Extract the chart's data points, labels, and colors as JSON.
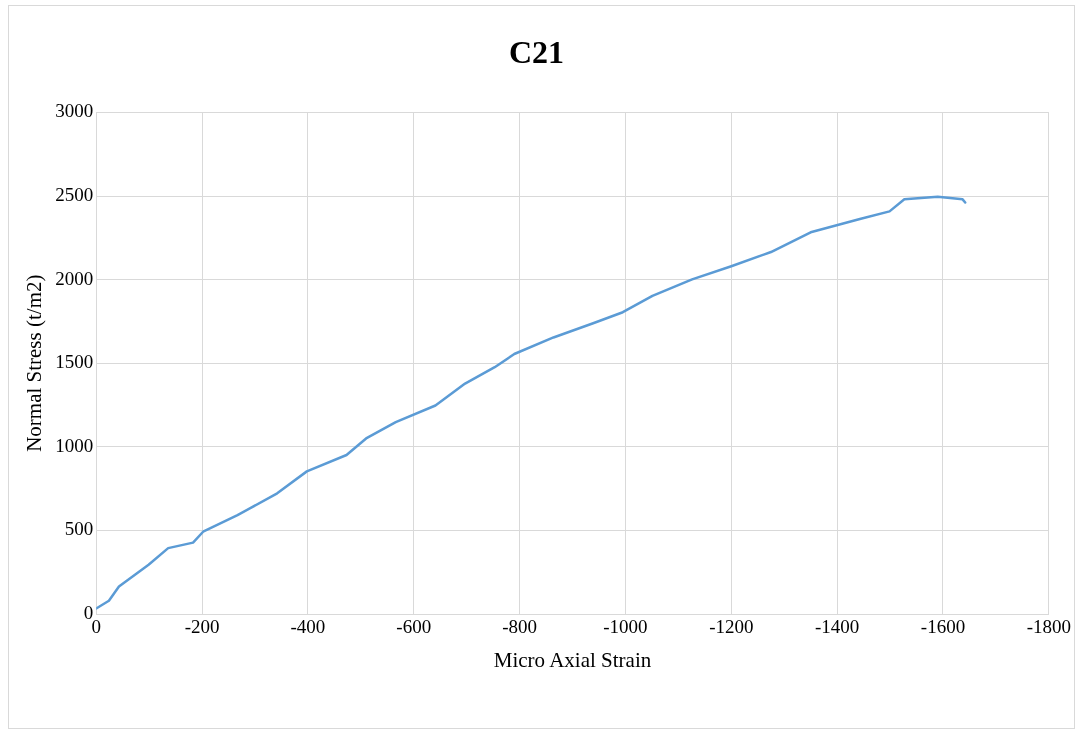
{
  "chart_data": {
    "type": "line",
    "title": "C21",
    "xlabel": "Micro Axial Strain",
    "ylabel": "Normal Stress (t/m2)",
    "xlim": [
      0,
      -1800
    ],
    "xticks": [
      0,
      -200,
      -400,
      -600,
      -800,
      -1000,
      -1200,
      -1400,
      -1600,
      -1800
    ],
    "ylim": [
      0,
      3000
    ],
    "yticks": [
      0,
      500,
      1000,
      1500,
      2000,
      2500,
      3000
    ],
    "grid": true,
    "legend": false,
    "marker": "none",
    "line_style": "solid",
    "series": [
      {
        "color": "#5b9bd5",
        "x": [
          0,
          -24,
          -43,
          -99,
          -136,
          -183,
          -202,
          -267,
          -342,
          -398,
          -473,
          -510,
          -566,
          -641,
          -697,
          -753,
          -790,
          -864,
          -939,
          -995,
          -1051,
          -1126,
          -1200,
          -1275,
          -1350,
          -1443,
          -1499,
          -1527,
          -1590,
          -1637,
          -1642
        ],
        "values": [
          33,
          79,
          164,
          295,
          394,
          427,
          492,
          591,
          722,
          853,
          951,
          1050,
          1148,
          1247,
          1378,
          1476,
          1555,
          1654,
          1739,
          1805,
          1903,
          2001,
          2080,
          2165,
          2283,
          2362,
          2408,
          2480,
          2495,
          2480,
          2461
        ]
      }
    ]
  }
}
